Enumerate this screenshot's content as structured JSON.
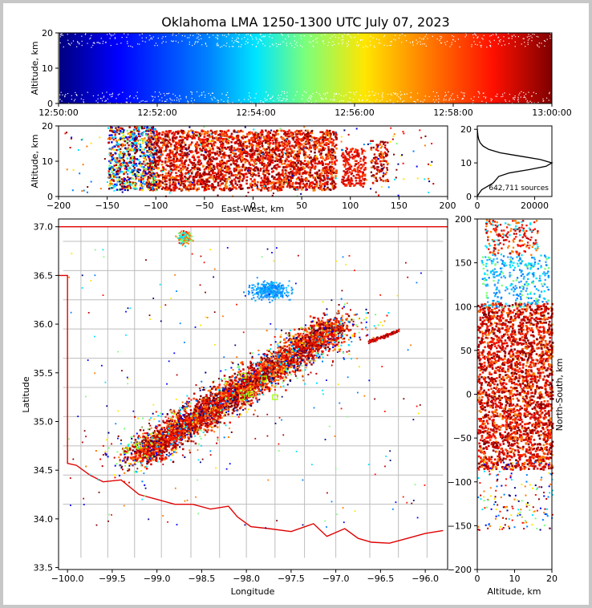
{
  "title": "Oklahoma LMA 1250-1300 UTC July 07, 2023",
  "chart_data": [
    {
      "type": "scatter",
      "panel": "altitude-vs-time",
      "ylabel": "Altitude, km",
      "ylim": [
        0,
        20
      ],
      "yticks": [
        "0",
        "10",
        "20"
      ],
      "xticks": [
        "12:50:00",
        "12:52:00",
        "12:54:00",
        "12:56:00",
        "12:58:00",
        "13:00:00"
      ],
      "colormap": "jet (color encodes time)"
    },
    {
      "type": "scatter",
      "panel": "altitude-vs-east-west",
      "xlabel": "East-West, km",
      "ylabel": "Altitude, km",
      "xlim": [
        -200,
        200
      ],
      "ylim": [
        0,
        20
      ],
      "xticks": [
        "−200",
        "−150",
        "−100",
        "−50",
        "0",
        "50",
        "100",
        "150",
        "200"
      ],
      "yticks": [
        "0",
        "10",
        "20"
      ]
    },
    {
      "type": "line",
      "panel": "altitude-histogram",
      "xticks": [
        "0",
        "20000"
      ],
      "yticks": [
        "0",
        "10",
        "20"
      ],
      "annotation": "642,711 sources",
      "profile": [
        [
          0,
          0
        ],
        [
          0.5,
          300
        ],
        [
          1,
          700
        ],
        [
          2,
          1500
        ],
        [
          3,
          3500
        ],
        [
          4,
          5500
        ],
        [
          5,
          6500
        ],
        [
          6,
          7500
        ],
        [
          7,
          11000
        ],
        [
          8,
          18000
        ],
        [
          9,
          24000
        ],
        [
          10,
          26000
        ],
        [
          11,
          22000
        ],
        [
          12,
          15000
        ],
        [
          13,
          8000
        ],
        [
          14,
          4000
        ],
        [
          15,
          2000
        ],
        [
          16,
          1000
        ],
        [
          17,
          500
        ],
        [
          18,
          250
        ],
        [
          19,
          100
        ],
        [
          20,
          30
        ]
      ]
    },
    {
      "type": "scatter",
      "panel": "plan-view-map",
      "xlabel": "Longitude",
      "ylabel": "Latitude",
      "xlim": [
        -100.1,
        -95.75
      ],
      "ylim": [
        33.48,
        37.08
      ],
      "xticks": [
        "−100.0",
        "−99.5",
        "−99.0",
        "−98.5",
        "−98.0",
        "−97.5",
        "−97.0",
        "−96.5",
        "−96.0"
      ],
      "yticks": [
        "33.5",
        "34.0",
        "34.5",
        "35.0",
        "35.5",
        "36.0",
        "36.5",
        "37.0"
      ],
      "stations": [
        [
          -99.35,
          34.7
        ],
        [
          -99.2,
          34.75
        ],
        [
          -98.05,
          35.25
        ],
        [
          -97.95,
          35.28
        ],
        [
          -97.8,
          35.44
        ],
        [
          -97.68,
          35.25
        ],
        [
          -98.03,
          35.47
        ]
      ]
    },
    {
      "type": "scatter",
      "panel": "north-south-vs-altitude",
      "xlabel": "Altitude, km",
      "ylabel": "North-South, km",
      "xlim": [
        0,
        20
      ],
      "ylim": [
        -200,
        200
      ],
      "xticks": [
        "0",
        "10",
        "20"
      ],
      "yticks": [
        "−200",
        "−150",
        "−100",
        "−50",
        "0",
        "50",
        "100",
        "150",
        "200"
      ]
    }
  ]
}
